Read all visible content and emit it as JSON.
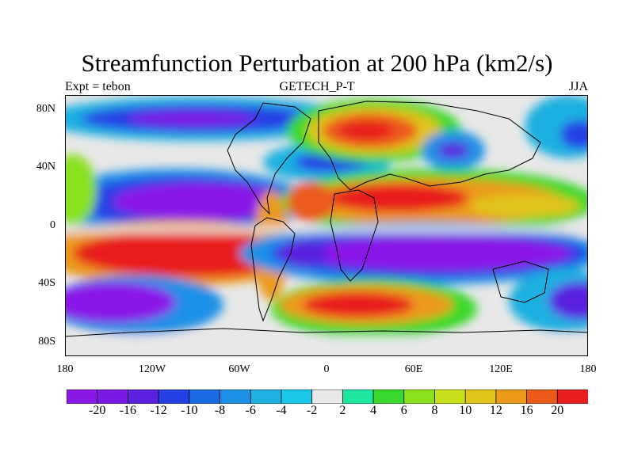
{
  "title": "Streamfunction Perturbation at 200 hPa (km2/s)",
  "subtitle_left": "Expt = tebon",
  "subtitle_center": "GETECH_P-T",
  "subtitle_right": "JJA",
  "lat_labels": [
    "80N",
    "40N",
    "0",
    "40S",
    "80S"
  ],
  "lon_labels": [
    "180",
    "120W",
    "60W",
    "0",
    "60E",
    "120E",
    "180"
  ],
  "colorbar": {
    "labels": [
      "-20",
      "-16",
      "-12",
      "-10",
      "-8",
      "-6",
      "-4",
      "-2",
      "2",
      "4",
      "6",
      "8",
      "10",
      "12",
      "16",
      "20"
    ],
    "colors": [
      "#8a19e8",
      "#7a1ae6",
      "#5a22e0",
      "#2640e6",
      "#1a6ae6",
      "#1e90e6",
      "#1eb0e0",
      "#19c8e8",
      "#e8e8e8",
      "#1ee8a0",
      "#3ad82c",
      "#8ae01a",
      "#c8e01a",
      "#e0c41a",
      "#ec9a1a",
      "#ec5a1a",
      "#e81e1e"
    ]
  }
}
